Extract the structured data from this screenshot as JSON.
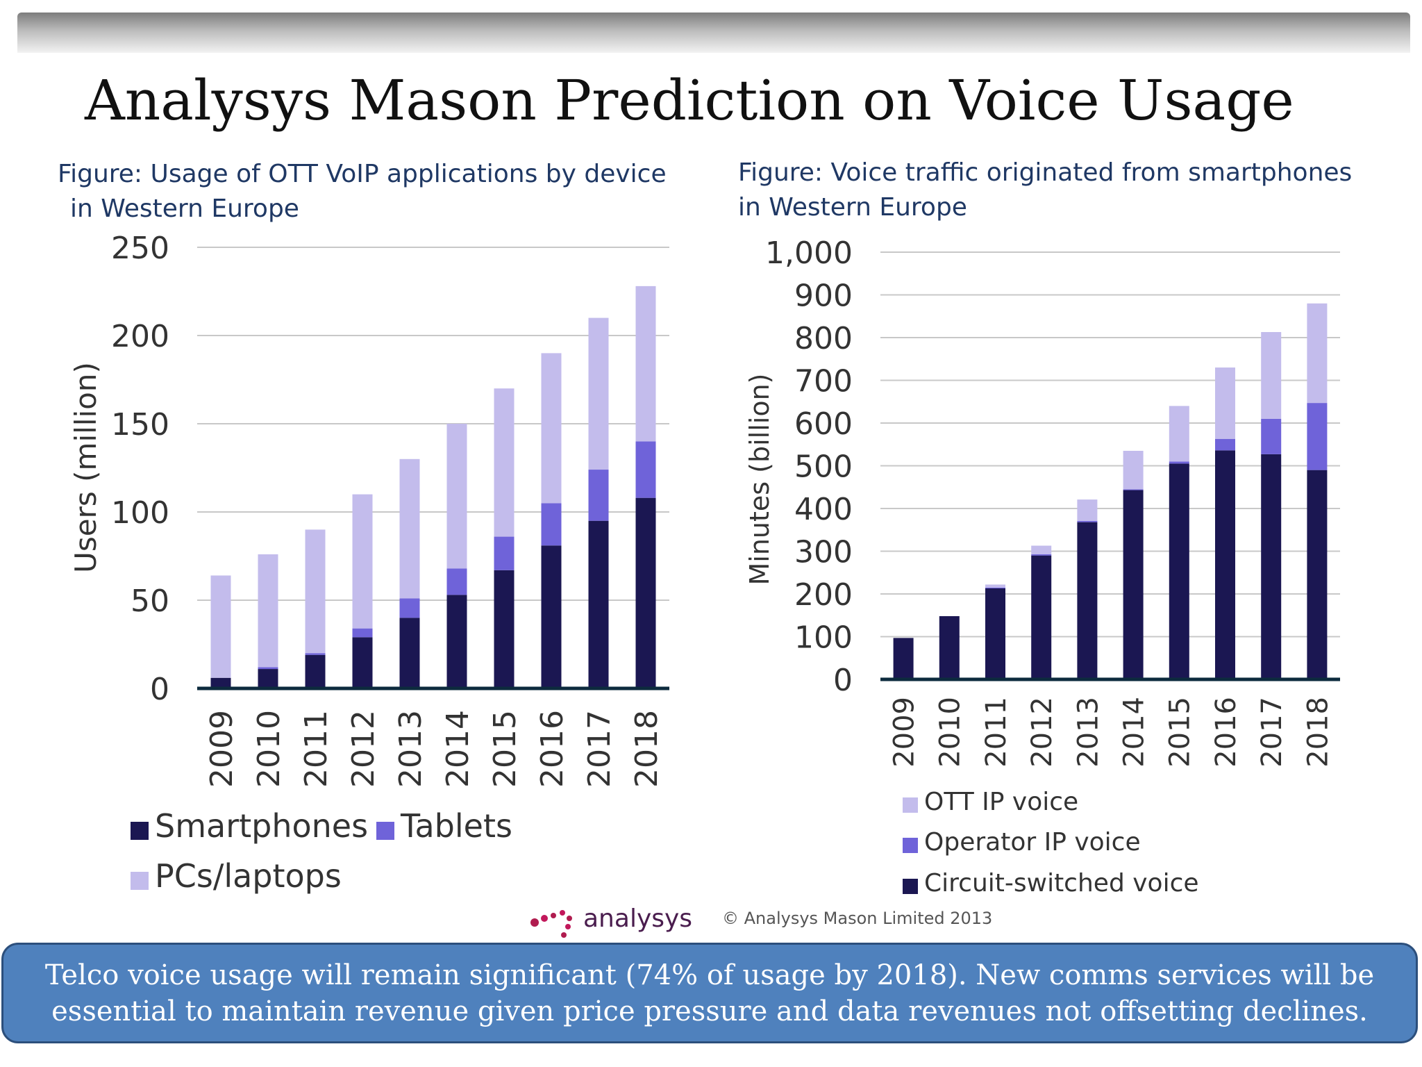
{
  "title": "Analysys Mason Prediction on Voice Usage",
  "callout": {
    "line1": "Telco voice usage will remain significant (74% of usage by 2018).  New comms services will be",
    "line2": "essential to maintain revenue given price pressure and  data revenues not offsetting declines."
  },
  "footer": {
    "logo_text": "analysys",
    "copyright": "© Analysys Mason Limited 2013"
  },
  "icons": {
    "logo": "analysys-mason-logo"
  },
  "colors": {
    "dark": "#1b1752",
    "mid": "#6f63d9",
    "light": "#c3bcec",
    "callout": "#4f81bd"
  },
  "chart_data": [
    {
      "type": "bar",
      "stacked": true,
      "title_line1": "Figure: Usage of OTT VoIP applications by device",
      "title_line2": "in Western Europe",
      "xlabel": "",
      "ylabel": "Users (million)",
      "categories": [
        "2009",
        "2010",
        "2011",
        "2012",
        "2013",
        "2014",
        "2015",
        "2016",
        "2017",
        "2018"
      ],
      "ylim": [
        0,
        250
      ],
      "yticks": [
        "0",
        "50",
        "100",
        "150",
        "200",
        "250"
      ],
      "grid": true,
      "legend": "bottom",
      "series": [
        {
          "name": "Smartphones",
          "values": [
            6,
            11,
            19,
            29,
            40,
            53,
            67,
            81,
            95,
            108
          ],
          "color": "#1b1752"
        },
        {
          "name": "Tablets",
          "values": [
            0,
            1,
            1,
            5,
            11,
            15,
            19,
            24,
            29,
            32
          ],
          "color": "#6f63d9"
        },
        {
          "name": "PCs/laptops",
          "values": [
            58,
            64,
            70,
            76,
            79,
            82,
            84,
            85,
            86,
            88
          ],
          "color": "#c3bcec"
        }
      ],
      "legend_order": [
        "Smartphones",
        "Tablets",
        "PCs/laptops"
      ]
    },
    {
      "type": "bar",
      "stacked": true,
      "title_line1": "Figure: Voice traffic originated from smartphones",
      "title_line2": "in  Western Europe",
      "xlabel": "",
      "ylabel": "Minutes (billion)",
      "categories": [
        "2009",
        "2010",
        "2011",
        "2012",
        "2013",
        "2014",
        "2015",
        "2016",
        "2017",
        "2018"
      ],
      "ylim": [
        0,
        1000
      ],
      "yticks": [
        "0",
        "100",
        "200",
        "300",
        "400",
        "500",
        "600",
        "700",
        "800",
        "900",
        "1,000"
      ],
      "grid": true,
      "legend": "bottom",
      "series": [
        {
          "name": "Circuit-switched voice",
          "values": [
            97,
            148,
            213,
            290,
            368,
            443,
            505,
            536,
            527,
            490
          ],
          "color": "#1b1752"
        },
        {
          "name": "Operator IP voice",
          "values": [
            0,
            0,
            2,
            3,
            3,
            2,
            5,
            27,
            83,
            157
          ],
          "color": "#6f63d9"
        },
        {
          "name": "OTT IP voice",
          "values": [
            0,
            0,
            7,
            20,
            50,
            90,
            130,
            167,
            203,
            233
          ],
          "color": "#c3bcec"
        }
      ],
      "legend_order": [
        "OTT IP voice",
        "Operator IP voice",
        "Circuit-switched voice"
      ]
    }
  ]
}
